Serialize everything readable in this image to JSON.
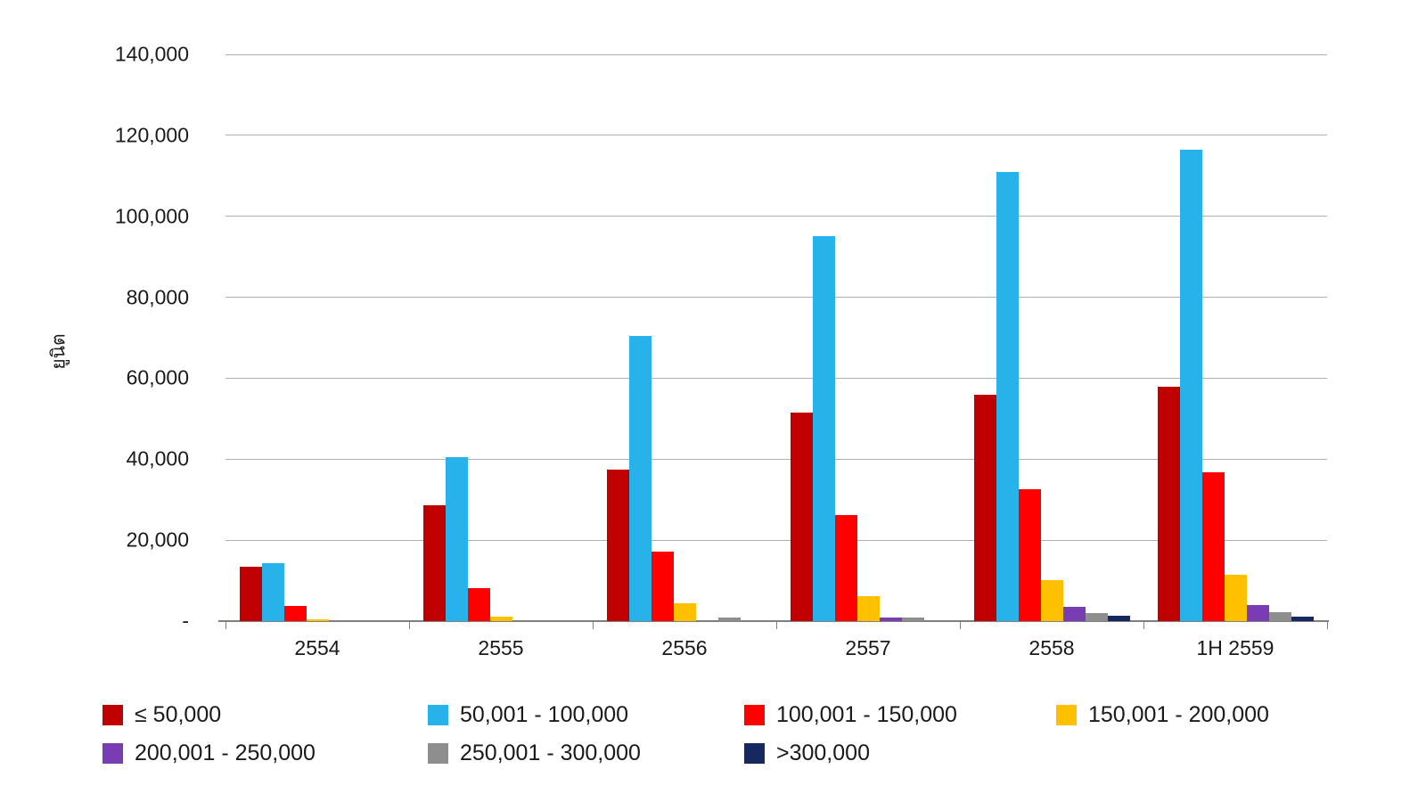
{
  "chart_data": {
    "type": "bar",
    "categories": [
      "2554",
      "2555",
      "2556",
      "2557",
      "2558",
      "1H 2559"
    ],
    "series": [
      {
        "name": "≤ 50,000",
        "color": "#C00000",
        "values": [
          13500,
          28600,
          37500,
          51500,
          56000,
          58000
        ]
      },
      {
        "name": "50,001 - 100,000",
        "color": "#27B2EA",
        "values": [
          14200,
          40500,
          70500,
          95000,
          111000,
          116500
        ]
      },
      {
        "name": "100,001 - 150,000",
        "color": "#FE0000",
        "values": [
          3700,
          8200,
          17200,
          26300,
          32500,
          36700
        ]
      },
      {
        "name": "150,001 - 200,000",
        "color": "#FFC000",
        "values": [
          400,
          1100,
          4300,
          6200,
          10100,
          11500
        ]
      },
      {
        "name": "200,001 - 250,000",
        "color": "#7A3CB2",
        "values": [
          0,
          0,
          0,
          900,
          3500,
          3900
        ]
      },
      {
        "name": "250,001 - 300,000",
        "color": "#8E8E8E",
        "values": [
          0,
          0,
          900,
          800,
          2000,
          2100
        ]
      },
      {
        "name": ">300,000",
        "color": "#152860",
        "values": [
          0,
          0,
          0,
          0,
          1300,
          1200
        ]
      }
    ],
    "title": "",
    "xlabel": "",
    "ylabel": "ยูนิต",
    "ylim": [
      0,
      140000
    ],
    "ytick_interval": 20000,
    "ytick_labels": [
      "-",
      "20,000",
      "40,000",
      "60,000",
      "80,000",
      "100,000",
      "120,000",
      "140,000"
    ],
    "grid": true,
    "legend_position": "bottom"
  }
}
